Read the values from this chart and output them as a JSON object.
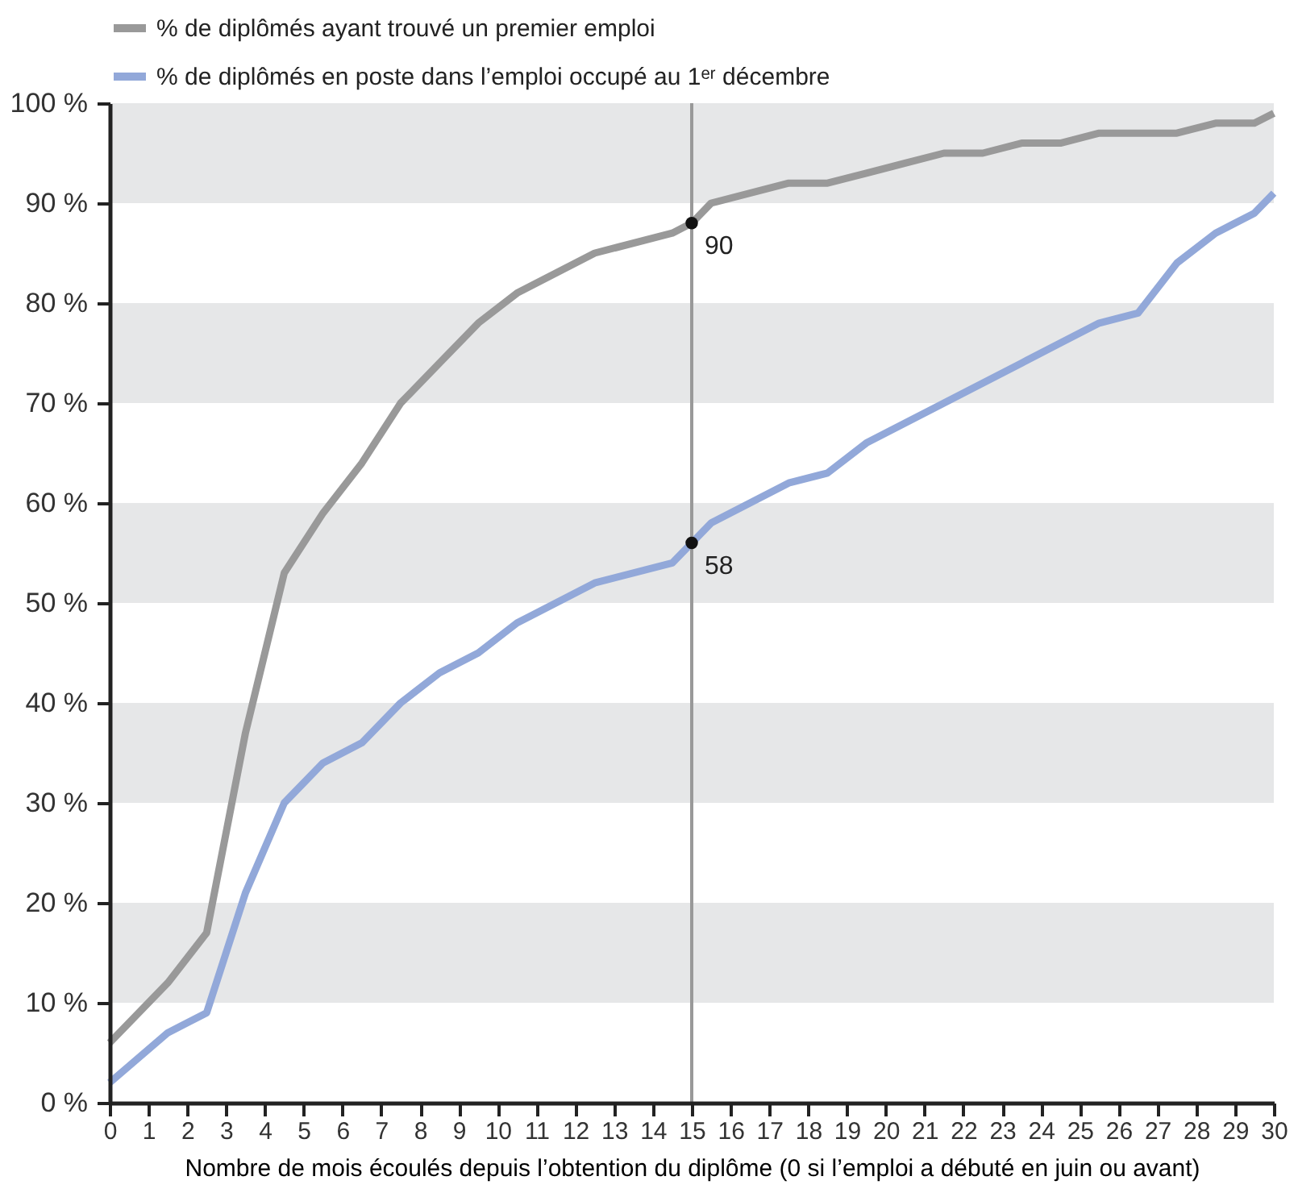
{
  "chart_data": {
    "type": "line",
    "xlabel": "Nombre de mois écoulés depuis l’obtention du diplôme (0 si l’emploi a débuté en juin ou avant)",
    "x": [
      0,
      1.5,
      2.5,
      3.5,
      4.5,
      5.5,
      6.5,
      7.5,
      8.5,
      9.5,
      10.5,
      12.5,
      14.5,
      15,
      15.5,
      17.5,
      18.5,
      19.5,
      20.5,
      21.5,
      22.5,
      23.5,
      24.5,
      25.5,
      26.5,
      27.5,
      28.5,
      29.5,
      30
    ],
    "series": [
      {
        "name": "% de diplômés ayant trouvé un premier emploi",
        "color": "#999999",
        "values": [
          6,
          12,
          17,
          37,
          53,
          59,
          64,
          70,
          74,
          78,
          81,
          85,
          87,
          88,
          90,
          92,
          92,
          93,
          94,
          95,
          95,
          96,
          96,
          97,
          97,
          97,
          98,
          98,
          99
        ]
      },
      {
        "name": "% de diplômés en poste dans l’emploi occupé au 1ᵉʳ décembre",
        "color": "#92a8d9",
        "values": [
          2,
          7,
          9,
          21,
          30,
          34,
          36,
          40,
          43,
          45,
          48,
          52,
          54,
          56,
          58,
          62,
          63,
          66,
          68,
          70,
          72,
          74,
          76,
          78,
          79,
          84,
          87,
          89,
          91
        ]
      }
    ],
    "xlim": [
      0,
      30
    ],
    "xticks": [
      0,
      1,
      2,
      3,
      4,
      5,
      6,
      7,
      8,
      9,
      10,
      11,
      12,
      13,
      14,
      15,
      16,
      17,
      18,
      19,
      20,
      21,
      22,
      23,
      24,
      25,
      26,
      27,
      28,
      29,
      30
    ],
    "ylim": [
      0,
      100
    ],
    "yticks": [
      {
        "value": 0,
        "label": "0 %"
      },
      {
        "value": 10,
        "label": "10 %"
      },
      {
        "value": 20,
        "label": "20 %"
      },
      {
        "value": 30,
        "label": "30 %"
      },
      {
        "value": 40,
        "label": "40 %"
      },
      {
        "value": 50,
        "label": "50 %"
      },
      {
        "value": 60,
        "label": "60 %"
      },
      {
        "value": 70,
        "label": "70 %"
      },
      {
        "value": 80,
        "label": "80 %"
      },
      {
        "value": 90,
        "label": "90 %"
      },
      {
        "value": 100,
        "label": "100 %"
      }
    ],
    "annotations": [
      {
        "text": "90",
        "x": 15,
        "y": 88
      },
      {
        "text": "58",
        "x": 15,
        "y": 56
      }
    ],
    "ref_lines": [
      {
        "axis": "x",
        "value": 15,
        "color": "#999999"
      }
    ],
    "bands": [
      {
        "axis": "y",
        "from": 10,
        "to": 20,
        "color": "#e6e7e8"
      },
      {
        "axis": "y",
        "from": 30,
        "to": 40,
        "color": "#e6e7e8"
      },
      {
        "axis": "y",
        "from": 50,
        "to": 60,
        "color": "#e6e7e8"
      },
      {
        "axis": "y",
        "from": 70,
        "to": 80,
        "color": "#e6e7e8"
      },
      {
        "axis": "y",
        "from": 90,
        "to": 100,
        "color": "#e6e7e8"
      }
    ],
    "grid": false,
    "legend": "top",
    "marker": "none",
    "line_style": "solid"
  }
}
